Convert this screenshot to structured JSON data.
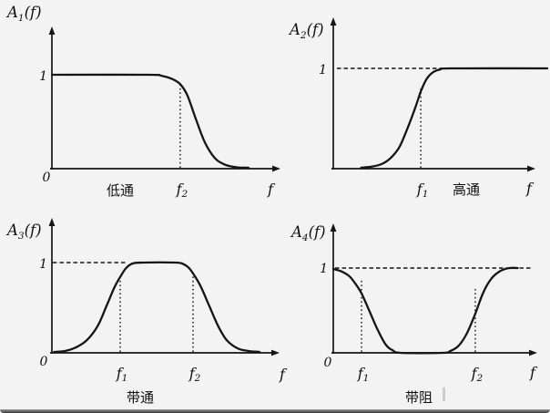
{
  "page": {
    "background_color": "#f3f3f3",
    "ink_color": "#151515",
    "description": "Four filter amplitude-frequency response sketches"
  },
  "plots": [
    {
      "axis_label": {
        "base": "A",
        "sub": "1",
        "rest": "(f)"
      },
      "unity_label": "1",
      "origin_label": "0",
      "type_label": "低通",
      "x_axis_label": "f"
    },
    {
      "axis_label": {
        "base": "A",
        "sub": "2",
        "rest": "(f)"
      },
      "unity_label": "1",
      "origin_label": "",
      "type_label": "高通",
      "x_axis_label": "f"
    },
    {
      "axis_label": {
        "base": "A",
        "sub": "3",
        "rest": "(f)"
      },
      "unity_label": "1",
      "origin_label": "0",
      "type_label": "带通",
      "x_axis_label": "f"
    },
    {
      "axis_label": {
        "base": "A",
        "sub": "4",
        "rest": "(f)"
      },
      "unity_label": "1",
      "origin_label": "0",
      "type_label": "带阻",
      "x_axis_label": "f"
    }
  ],
  "chart_data": [
    {
      "type": "line",
      "title": "低通",
      "ylabel": "A1(f)",
      "xlabel": "f",
      "ylim": [
        0,
        1
      ],
      "xticks": [
        "0",
        "f2"
      ],
      "yticks": [
        "1"
      ],
      "unity_line": null,
      "curve": [
        [
          0,
          1
        ],
        [
          0.44,
          1
        ],
        [
          0.5,
          0.99
        ],
        [
          0.55,
          0.955
        ],
        [
          0.587,
          0.9
        ],
        [
          0.62,
          0.78
        ],
        [
          0.66,
          0.52
        ],
        [
          0.7,
          0.28
        ],
        [
          0.745,
          0.115
        ],
        [
          0.79,
          0.045
        ],
        [
          0.845,
          0.015
        ],
        [
          0.9,
          0.01
        ]
      ],
      "markers": [
        {
          "x": 0.587,
          "top": 0.92,
          "label": {
            "base": "f",
            "sub": "2"
          }
        }
      ]
    },
    {
      "type": "line",
      "title": "高通",
      "ylabel": "A2(f)",
      "xlabel": "f",
      "ylim": [
        0,
        1
      ],
      "xticks": [
        "f1"
      ],
      "yticks": [
        "1"
      ],
      "unity_line": [
        0.017,
        0.485
      ],
      "curve": [
        [
          0.13,
          0.01
        ],
        [
          0.18,
          0.02
        ],
        [
          0.23,
          0.05
        ],
        [
          0.27,
          0.11
        ],
        [
          0.31,
          0.22
        ],
        [
          0.35,
          0.42
        ],
        [
          0.385,
          0.62
        ],
        [
          0.409,
          0.77
        ],
        [
          0.435,
          0.89
        ],
        [
          0.465,
          0.96
        ],
        [
          0.5,
          0.99
        ],
        [
          0.55,
          1
        ],
        [
          1.0,
          1
        ]
      ],
      "markers": [
        {
          "x": 0.409,
          "top": 0.8,
          "label": {
            "base": "f",
            "sub": "1"
          }
        }
      ]
    },
    {
      "type": "line",
      "title": "带通",
      "ylabel": "A3(f)",
      "xlabel": "f",
      "ylim": [
        0,
        1
      ],
      "xticks": [
        "0",
        "f1",
        "f2"
      ],
      "yticks": [
        "1"
      ],
      "unity_line": [
        0.004,
        0.345
      ],
      "curve": [
        [
          0.01,
          0.01
        ],
        [
          0.06,
          0.02
        ],
        [
          0.11,
          0.06
        ],
        [
          0.16,
          0.14
        ],
        [
          0.21,
          0.3
        ],
        [
          0.25,
          0.52
        ],
        [
          0.285,
          0.72
        ],
        [
          0.3125,
          0.84
        ],
        [
          0.34,
          0.94
        ],
        [
          0.37,
          0.99
        ],
        [
          0.42,
          1
        ],
        [
          0.565,
          1
        ],
        [
          0.6,
          0.985
        ],
        [
          0.625,
          0.945
        ],
        [
          0.646,
          0.88
        ],
        [
          0.68,
          0.74
        ],
        [
          0.72,
          0.52
        ],
        [
          0.76,
          0.3
        ],
        [
          0.8,
          0.14
        ],
        [
          0.85,
          0.05
        ],
        [
          0.9,
          0.02
        ],
        [
          0.95,
          0.01
        ]
      ],
      "markers": [
        {
          "x": 0.3125,
          "top": 0.85,
          "label": {
            "base": "f",
            "sub": "1"
          }
        },
        {
          "x": 0.646,
          "top": 0.85,
          "label": {
            "base": "f",
            "sub": "2"
          }
        }
      ]
    },
    {
      "type": "line",
      "title": "带阻",
      "ylabel": "A4(f)",
      "xlabel": "f",
      "ylim": [
        0,
        1
      ],
      "xticks": [
        "0",
        "f1",
        "f2"
      ],
      "yticks": [
        "1"
      ],
      "unity_line": [
        0.009,
        0.964
      ],
      "curve": [
        [
          0,
          0.99
        ],
        [
          0.04,
          0.96
        ],
        [
          0.08,
          0.9
        ],
        [
          0.115,
          0.79
        ],
        [
          0.138,
          0.7
        ],
        [
          0.175,
          0.5
        ],
        [
          0.215,
          0.28
        ],
        [
          0.255,
          0.1
        ],
        [
          0.29,
          0.03
        ],
        [
          0.33,
          0
        ],
        [
          0.535,
          0
        ],
        [
          0.57,
          0.02
        ],
        [
          0.61,
          0.08
        ],
        [
          0.65,
          0.22
        ],
        [
          0.693,
          0.46
        ],
        [
          0.73,
          0.7
        ],
        [
          0.77,
          0.87
        ],
        [
          0.815,
          0.965
        ],
        [
          0.86,
          1
        ],
        [
          0.9,
          1
        ]
      ],
      "markers": [
        {
          "x": 0.138,
          "top": 0.88,
          "label": {
            "base": "f",
            "sub": "1"
          }
        },
        {
          "x": 0.693,
          "top": 0.77,
          "label": {
            "base": "f",
            "sub": "2"
          }
        }
      ]
    }
  ]
}
